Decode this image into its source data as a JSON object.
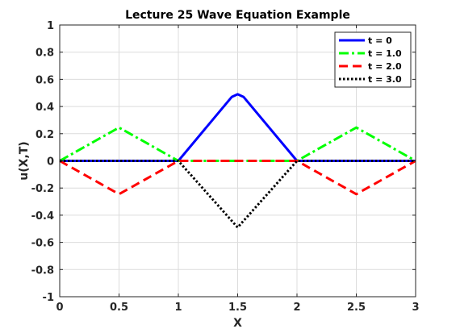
{
  "chart_data": {
    "type": "line",
    "title": "Lecture 25 Wave Equation Example",
    "xlabel": "X",
    "ylabel": "u(X,T)",
    "xlim": [
      0,
      3
    ],
    "ylim": [
      -1,
      1
    ],
    "xticks": [
      0,
      0.5,
      1,
      1.5,
      2,
      2.5,
      3
    ],
    "xtick_labels": [
      "0",
      "0.5",
      "1",
      "1.5",
      "2",
      "2.5",
      "3"
    ],
    "yticks": [
      -1,
      -0.8,
      -0.6,
      -0.4,
      -0.2,
      0,
      0.2,
      0.4,
      0.6,
      0.8,
      1
    ],
    "ytick_labels": [
      "-1",
      "-0.8",
      "-0.6",
      "-0.4",
      "-0.2",
      "0",
      "0.2",
      "0.4",
      "0.6",
      "0.8",
      "1"
    ],
    "grid": true,
    "legend_position": "top-right",
    "series": [
      {
        "name": "t = 0",
        "color": "#0000ff",
        "dash": "solid",
        "x": [
          0,
          1,
          1.45,
          1.5,
          1.55,
          2,
          3
        ],
        "y": [
          0,
          0,
          0.47,
          0.49,
          0.47,
          0,
          0
        ]
      },
      {
        "name": "t = 1.0",
        "color": "#00ff00",
        "dash": "dashdot",
        "x": [
          0,
          0.5,
          1,
          2,
          2.5,
          3
        ],
        "y": [
          0,
          0.245,
          0,
          0,
          0.245,
          0
        ]
      },
      {
        "name": "t = 2.0",
        "color": "#ff0000",
        "dash": "dashed",
        "x": [
          0,
          0.5,
          1,
          2,
          2.5,
          3
        ],
        "y": [
          0,
          -0.245,
          0,
          0,
          -0.245,
          0
        ]
      },
      {
        "name": "t = 3.0",
        "color": "#000000",
        "dash": "dotted",
        "x": [
          0,
          1,
          1.5,
          2,
          3
        ],
        "y": [
          0,
          0,
          -0.49,
          0,
          0
        ]
      }
    ]
  }
}
